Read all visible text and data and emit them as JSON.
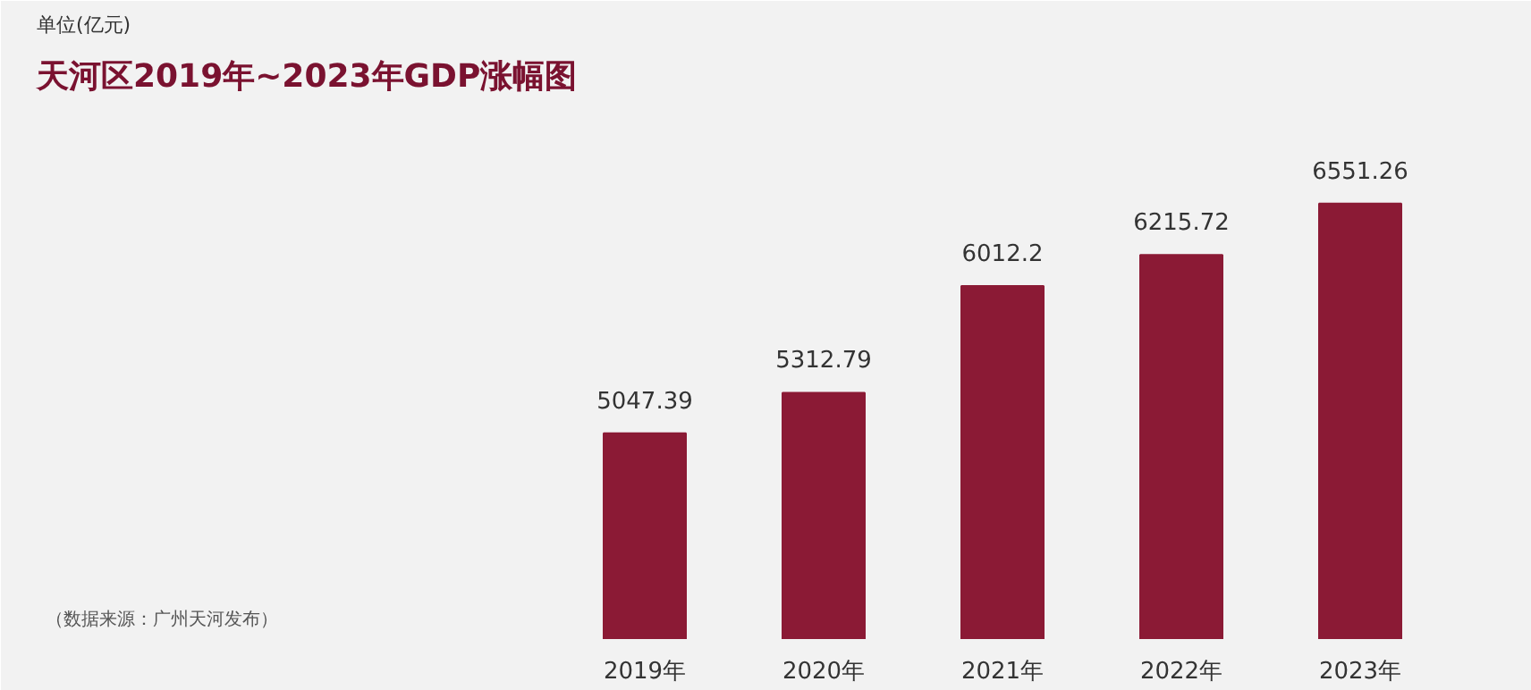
{
  "chart_data": {
    "type": "bar",
    "title": "天河区2019年~2023年GDP涨幅图",
    "subtitle": "单位(亿元)",
    "categories": [
      "2019年",
      "2020年",
      "2021年",
      "2022年",
      "2023年"
    ],
    "values": [
      5047.39,
      5312.79,
      6012.2,
      6215.72,
      6551.26
    ],
    "color": "#8b1a35",
    "ylim": [
      3700,
      7200
    ],
    "data_labels": true,
    "grid": false,
    "annotations": [
      "（数据来源：广州天河发布）"
    ]
  }
}
